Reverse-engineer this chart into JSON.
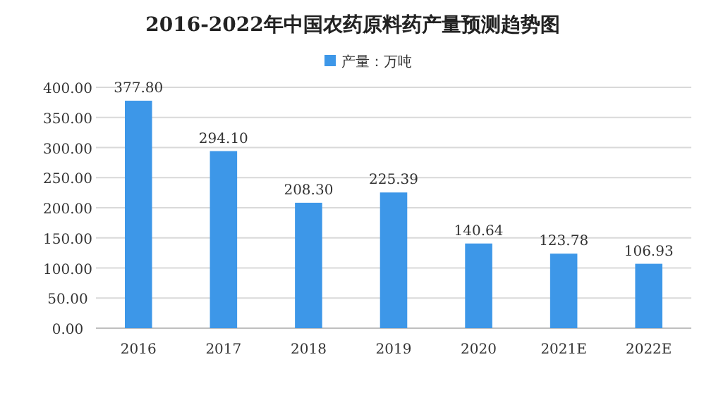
{
  "chart_data": {
    "type": "bar",
    "title": "2016-2022年中国农药原料药产量预测趋势图",
    "categories": [
      "2016",
      "2017",
      "2018",
      "2019",
      "2020",
      "2021E",
      "2022E"
    ],
    "series": [
      {
        "name": "产量：万吨",
        "color": "#3d97e8",
        "values": [
          377.8,
          294.1,
          208.3,
          225.39,
          140.64,
          123.78,
          106.93
        ]
      }
    ],
    "value_labels": [
      "377.80",
      "294.10",
      "208.30",
      "225.39",
      "140.64",
      "123.78",
      "106.93"
    ],
    "ylim": [
      0,
      400
    ],
    "yticks": [
      {
        "value": 0,
        "label": "0.00"
      },
      {
        "value": 50,
        "label": "50.00"
      },
      {
        "value": 100,
        "label": "100.00"
      },
      {
        "value": 150,
        "label": "150.00"
      },
      {
        "value": 200,
        "label": "200.00"
      },
      {
        "value": 250,
        "label": "250.00"
      },
      {
        "value": 300,
        "label": "300.00"
      },
      {
        "value": 350,
        "label": "350.00"
      },
      {
        "value": 400,
        "label": "400.00"
      }
    ],
    "grid": "y",
    "legend": "top"
  }
}
